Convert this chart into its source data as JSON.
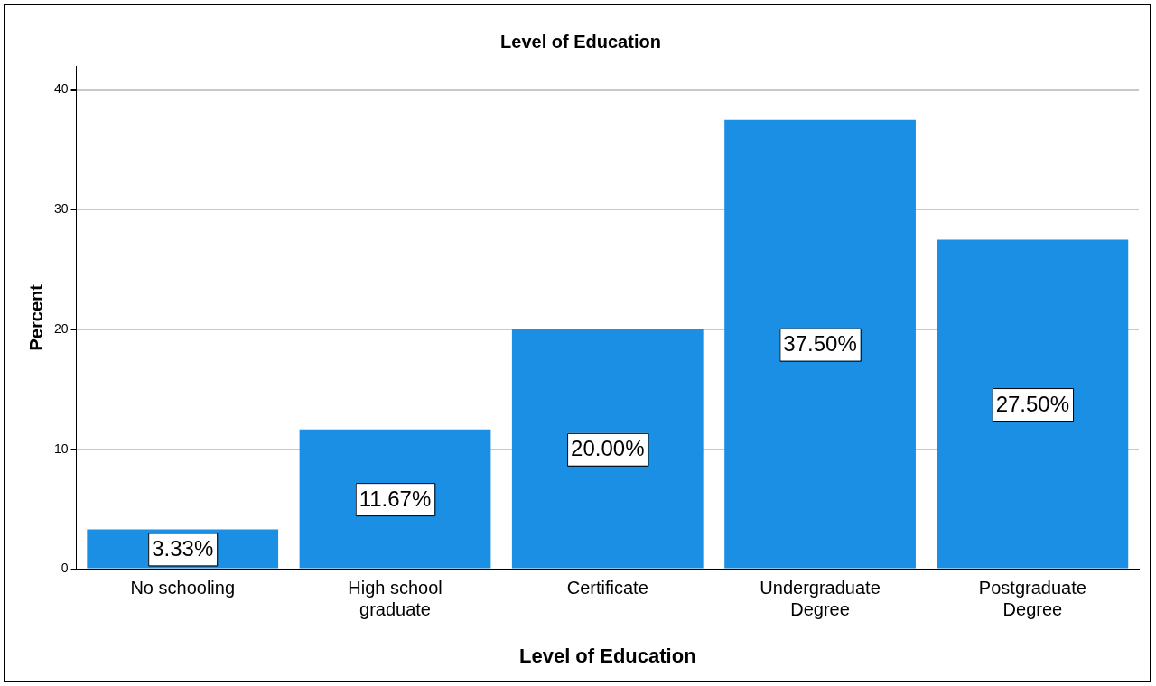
{
  "chart_data": {
    "type": "bar",
    "title": "Level of Education",
    "xlabel": "Level of Education",
    "ylabel": "Percent",
    "categories": [
      "No schooling",
      "High school graduate",
      "Certificate",
      "Undergraduate Degree",
      "Postgraduate Degree"
    ],
    "values": [
      3.33,
      11.67,
      20.0,
      37.5,
      27.5
    ],
    "value_labels": [
      "3.33%",
      "11.67%",
      "20.00%",
      "37.50%",
      "27.50%"
    ],
    "color": "#1a8fe3",
    "ylim": [
      0,
      42
    ],
    "yticks": [
      0,
      10,
      20,
      30,
      40
    ],
    "grid": "y",
    "legend": false
  }
}
